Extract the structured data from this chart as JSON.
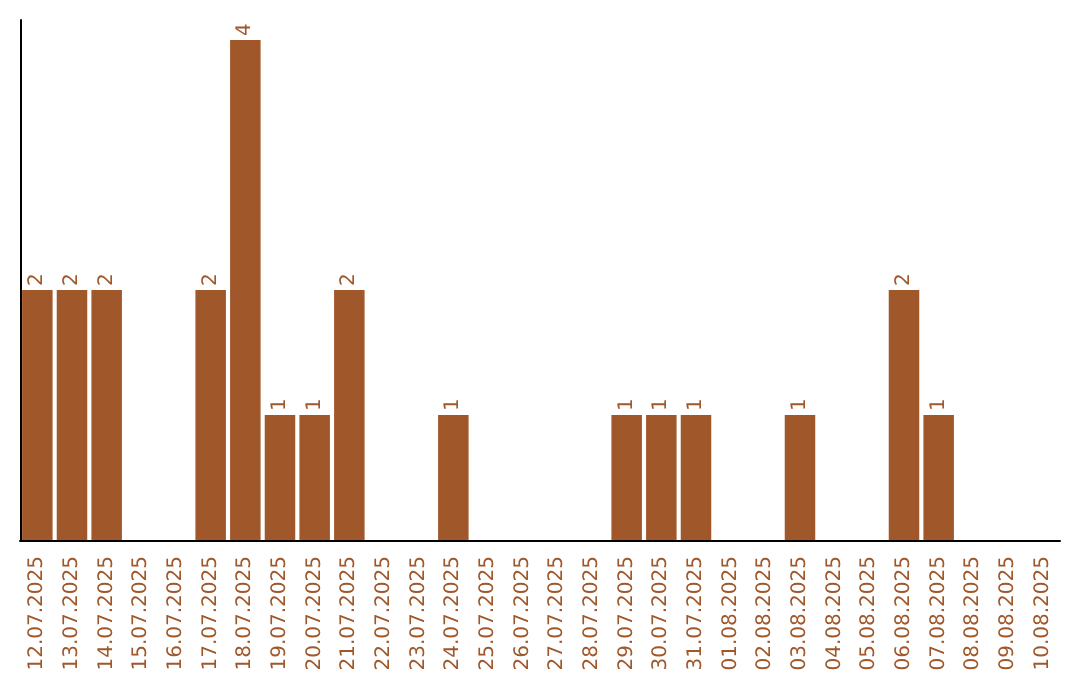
{
  "chart_data": {
    "type": "bar",
    "categories": [
      "12.07.2025",
      "13.07.2025",
      "14.07.2025",
      "15.07.2025",
      "16.07.2025",
      "17.07.2025",
      "18.07.2025",
      "19.07.2025",
      "20.07.2025",
      "21.07.2025",
      "22.07.2025",
      "23.07.2025",
      "24.07.2025",
      "25.07.2025",
      "26.07.2025",
      "27.07.2025",
      "28.07.2025",
      "29.07.2025",
      "30.07.2025",
      "31.07.2025",
      "01.08.2025",
      "02.08.2025",
      "03.08.2025",
      "04.08.2025",
      "05.08.2025",
      "06.08.2025",
      "07.08.2025",
      "08.08.2025",
      "09.08.2025",
      "10.08.2025"
    ],
    "values": [
      2,
      2,
      2,
      0,
      0,
      2,
      4,
      1,
      1,
      2,
      0,
      0,
      1,
      0,
      0,
      0,
      0,
      1,
      1,
      1,
      0,
      0,
      1,
      0,
      0,
      2,
      1,
      0,
      0,
      0
    ],
    "value_labels": [
      "2",
      "2",
      "2",
      null,
      null,
      "2",
      "4",
      "1",
      "1",
      "2",
      null,
      null,
      "1",
      null,
      null,
      null,
      null,
      "1",
      "1",
      "1",
      null,
      null,
      "1",
      null,
      null,
      "2",
      "1",
      null,
      null,
      null
    ],
    "color": "#a0572a",
    "ylim": [
      0,
      4.16
    ],
    "tick_labels": "x",
    "grid": false
  }
}
